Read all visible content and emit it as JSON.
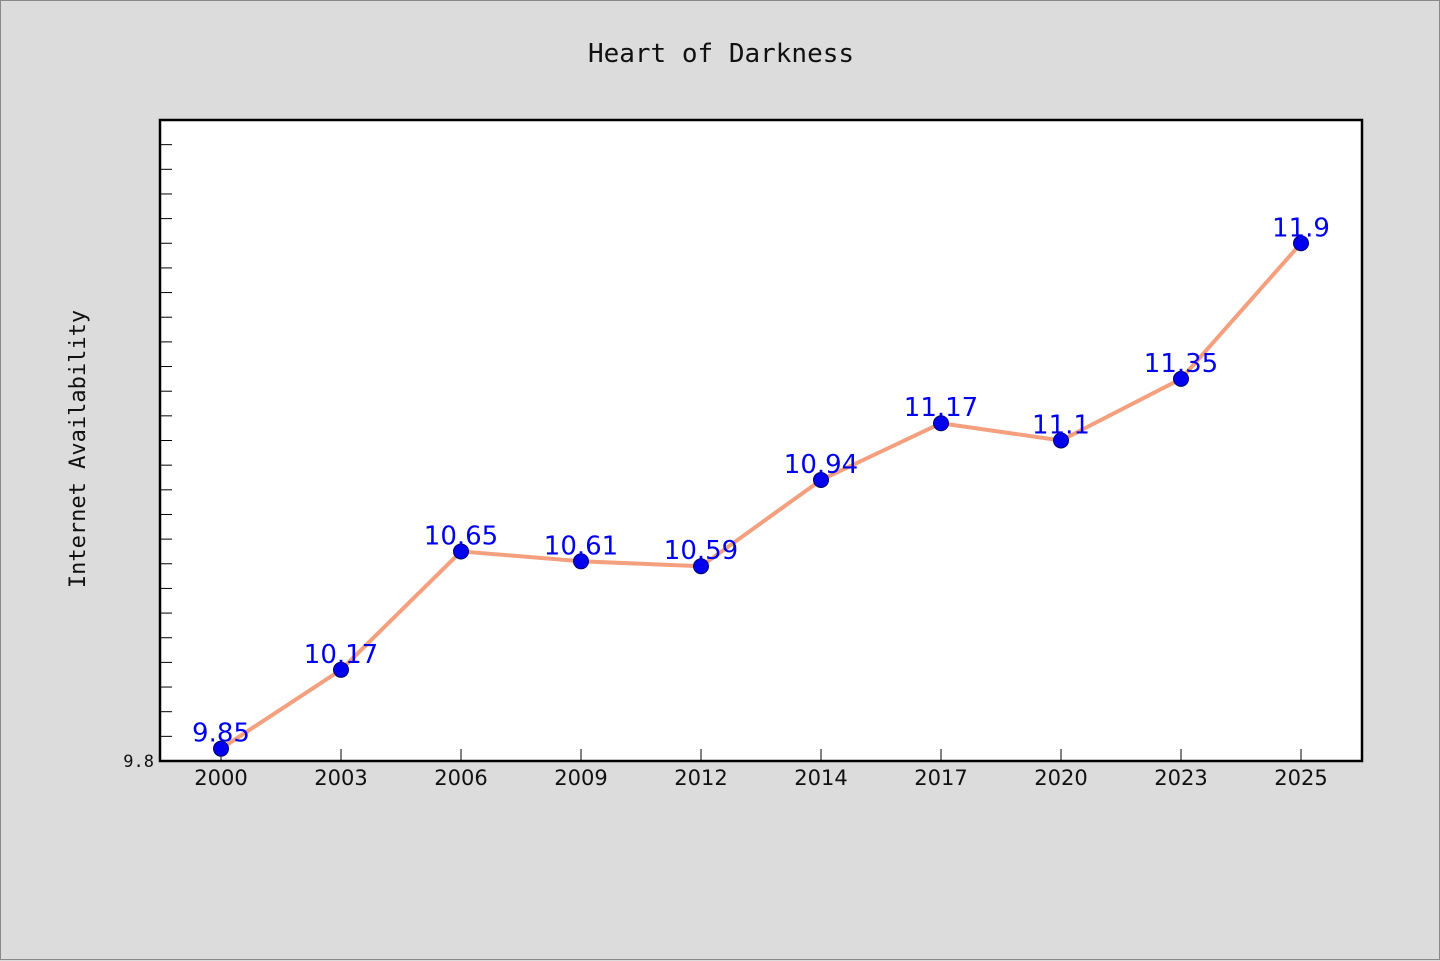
{
  "chart_data": {
    "type": "line",
    "title": "Heart of Darkness",
    "xlabel": "",
    "ylabel": "Internet Availability",
    "categories": [
      "2000",
      "2003",
      "2006",
      "2009",
      "2012",
      "2014",
      "2017",
      "2020",
      "2023",
      "2025"
    ],
    "series": [
      {
        "values": [
          9.85,
          10.17,
          10.65,
          10.61,
          10.59,
          10.94,
          11.17,
          11.1,
          11.35,
          11.9
        ]
      }
    ],
    "data_labels": [
      "9.85",
      "10.17",
      "10.65",
      "10.61",
      "10.59",
      "10.94",
      "11.17",
      "11.1",
      "11.35",
      "11.9"
    ],
    "ylim": [
      9.8,
      12.4
    ],
    "y_tick_labels": [
      "9.8"
    ],
    "grid": false,
    "legend": "none",
    "colors": {
      "line": "#f4a07e",
      "marker": "#0000ee",
      "marker_edge": "#000066",
      "data_label": "#0000ee",
      "plot_background": "#ffffff",
      "page_background": "#dcdcdc"
    }
  }
}
